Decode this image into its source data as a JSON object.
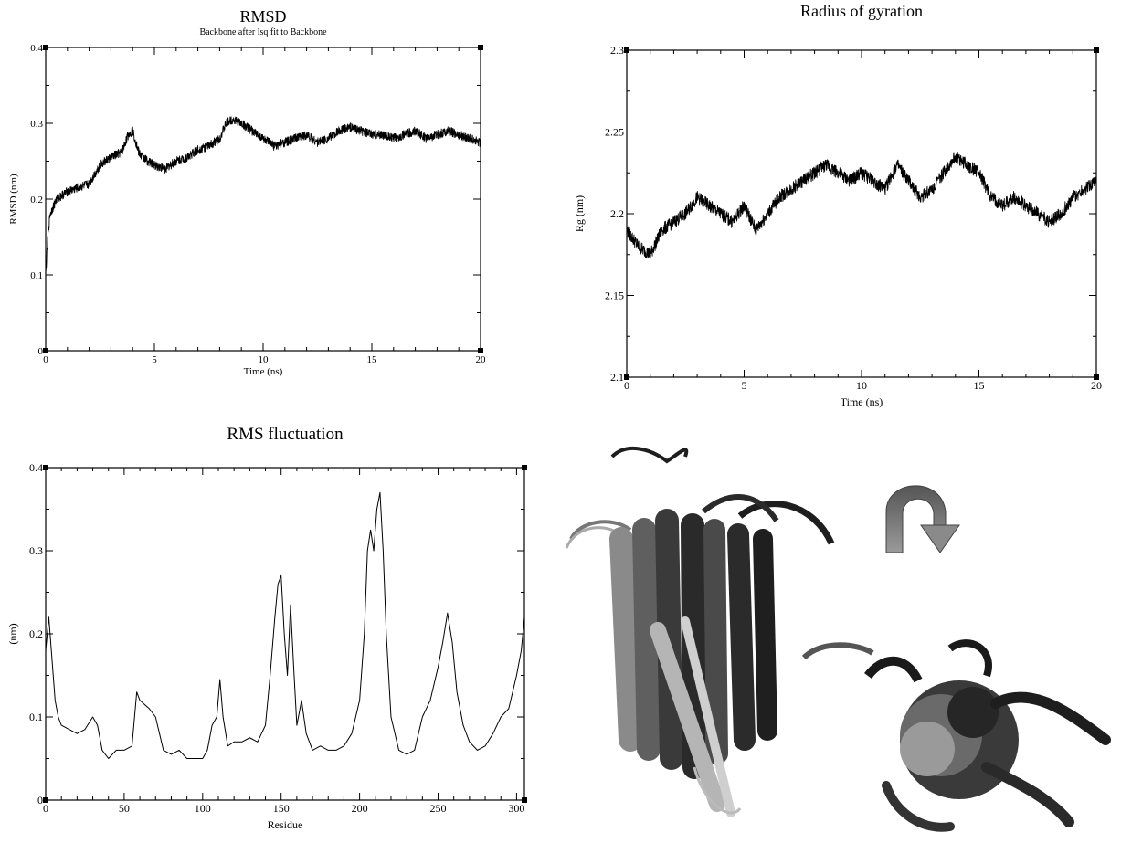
{
  "chart_data": [
    {
      "id": "rmsd",
      "type": "line",
      "title": "RMSD",
      "subtitle": "Backbone after lsq fit to Backbone",
      "xlabel": "Time (ns)",
      "ylabel": "RMSD (nm)",
      "xlim": [
        0,
        20
      ],
      "ylim": [
        0,
        0.4
      ],
      "x_ticks": [
        "0",
        "5",
        "10",
        "15",
        "20"
      ],
      "y_ticks": [
        "0",
        "0.1",
        "0.2",
        "0.3",
        "0.4"
      ],
      "grid": false,
      "series": [
        {
          "x": [
            0,
            0.1,
            0.2,
            0.5,
            1,
            1.5,
            2,
            2.5,
            3,
            3.5,
            3.8,
            4,
            4.3,
            4.7,
            5,
            5.5,
            6,
            6.5,
            7,
            7.5,
            8,
            8.3,
            8.6,
            9,
            9.5,
            10,
            10.5,
            11,
            11.5,
            12,
            12.5,
            13,
            13.5,
            14,
            14.5,
            15,
            15.5,
            16,
            16.5,
            17,
            17.5,
            18,
            18.5,
            19,
            19.5,
            20
          ],
          "values": [
            0.1,
            0.15,
            0.18,
            0.2,
            0.21,
            0.215,
            0.22,
            0.245,
            0.255,
            0.262,
            0.285,
            0.29,
            0.26,
            0.25,
            0.245,
            0.24,
            0.25,
            0.255,
            0.265,
            0.27,
            0.28,
            0.3,
            0.305,
            0.3,
            0.29,
            0.28,
            0.27,
            0.275,
            0.28,
            0.285,
            0.275,
            0.28,
            0.29,
            0.295,
            0.29,
            0.285,
            0.285,
            0.28,
            0.285,
            0.29,
            0.28,
            0.285,
            0.29,
            0.285,
            0.28,
            0.275
          ]
        }
      ]
    },
    {
      "id": "rg",
      "type": "line",
      "title": "Radius of gyration",
      "xlabel": "Time (ns)",
      "ylabel": "Rg (nm)",
      "xlim": [
        0,
        20
      ],
      "ylim": [
        2.1,
        2.3
      ],
      "x_ticks": [
        "0",
        "5",
        "10",
        "15",
        "20"
      ],
      "y_ticks": [
        "2.1",
        "2.15",
        "2.2",
        "2.25",
        "2.3"
      ],
      "grid": false,
      "series": [
        {
          "x": [
            0,
            0.5,
            1,
            1.5,
            2,
            2.5,
            3,
            3.5,
            4,
            4.5,
            5,
            5.5,
            6,
            6.5,
            7,
            7.5,
            8,
            8.5,
            9,
            9.5,
            10,
            10.5,
            11,
            11.5,
            12,
            12.5,
            13,
            13.5,
            14,
            14.5,
            15,
            15.5,
            16,
            16.5,
            17,
            17.5,
            18,
            18.5,
            19,
            19.5,
            20
          ],
          "values": [
            2.19,
            2.18,
            2.175,
            2.19,
            2.195,
            2.2,
            2.21,
            2.205,
            2.2,
            2.195,
            2.205,
            2.19,
            2.2,
            2.21,
            2.215,
            2.22,
            2.225,
            2.23,
            2.225,
            2.22,
            2.225,
            2.22,
            2.215,
            2.23,
            2.22,
            2.21,
            2.215,
            2.225,
            2.235,
            2.23,
            2.225,
            2.21,
            2.205,
            2.21,
            2.205,
            2.2,
            2.195,
            2.2,
            2.21,
            2.215,
            2.22
          ]
        }
      ]
    },
    {
      "id": "rmsf",
      "type": "line",
      "title": "RMS fluctuation",
      "xlabel": "Residue",
      "ylabel": "(nm)",
      "xlim": [
        0,
        305
      ],
      "ylim": [
        0,
        0.4
      ],
      "x_ticks": [
        "0",
        "50",
        "100",
        "150",
        "200",
        "250",
        "300"
      ],
      "y_ticks": [
        "0",
        "0.1",
        "0.2",
        "0.3",
        "0.4"
      ],
      "grid": false,
      "series": [
        {
          "x": [
            0,
            2,
            4,
            6,
            8,
            10,
            15,
            20,
            25,
            30,
            33,
            36,
            40,
            45,
            50,
            55,
            58,
            60,
            63,
            66,
            70,
            75,
            80,
            85,
            90,
            95,
            100,
            103,
            106,
            109,
            111,
            113,
            116,
            120,
            125,
            130,
            135,
            140,
            143,
            146,
            148,
            150,
            152,
            154,
            156,
            158,
            160,
            163,
            166,
            170,
            175,
            180,
            185,
            190,
            195,
            200,
            203,
            205,
            207,
            209,
            211,
            213,
            215,
            217,
            220,
            225,
            230,
            235,
            240,
            245,
            250,
            253,
            256,
            259,
            262,
            266,
            270,
            275,
            280,
            285,
            290,
            295,
            300,
            303,
            305
          ],
          "values": [
            0.18,
            0.22,
            0.17,
            0.12,
            0.1,
            0.09,
            0.085,
            0.08,
            0.085,
            0.1,
            0.09,
            0.06,
            0.05,
            0.06,
            0.06,
            0.065,
            0.13,
            0.12,
            0.115,
            0.11,
            0.1,
            0.06,
            0.055,
            0.06,
            0.05,
            0.05,
            0.05,
            0.06,
            0.09,
            0.1,
            0.145,
            0.1,
            0.065,
            0.07,
            0.07,
            0.075,
            0.07,
            0.09,
            0.15,
            0.22,
            0.26,
            0.27,
            0.2,
            0.15,
            0.235,
            0.16,
            0.09,
            0.12,
            0.08,
            0.06,
            0.065,
            0.06,
            0.06,
            0.065,
            0.08,
            0.12,
            0.2,
            0.3,
            0.325,
            0.3,
            0.35,
            0.37,
            0.3,
            0.2,
            0.1,
            0.06,
            0.055,
            0.06,
            0.1,
            0.12,
            0.16,
            0.19,
            0.225,
            0.19,
            0.13,
            0.09,
            0.07,
            0.06,
            0.065,
            0.08,
            0.1,
            0.11,
            0.15,
            0.18,
            0.22
          ]
        }
      ]
    }
  ],
  "molecule": {
    "arrow_icon": "curved-arrow-icon",
    "colors": {
      "dark": "#2a2a2a",
      "mid": "#707070",
      "light": "#b8b8b8",
      "arrow_top": "#555555",
      "arrow_bottom": "#999999"
    }
  }
}
